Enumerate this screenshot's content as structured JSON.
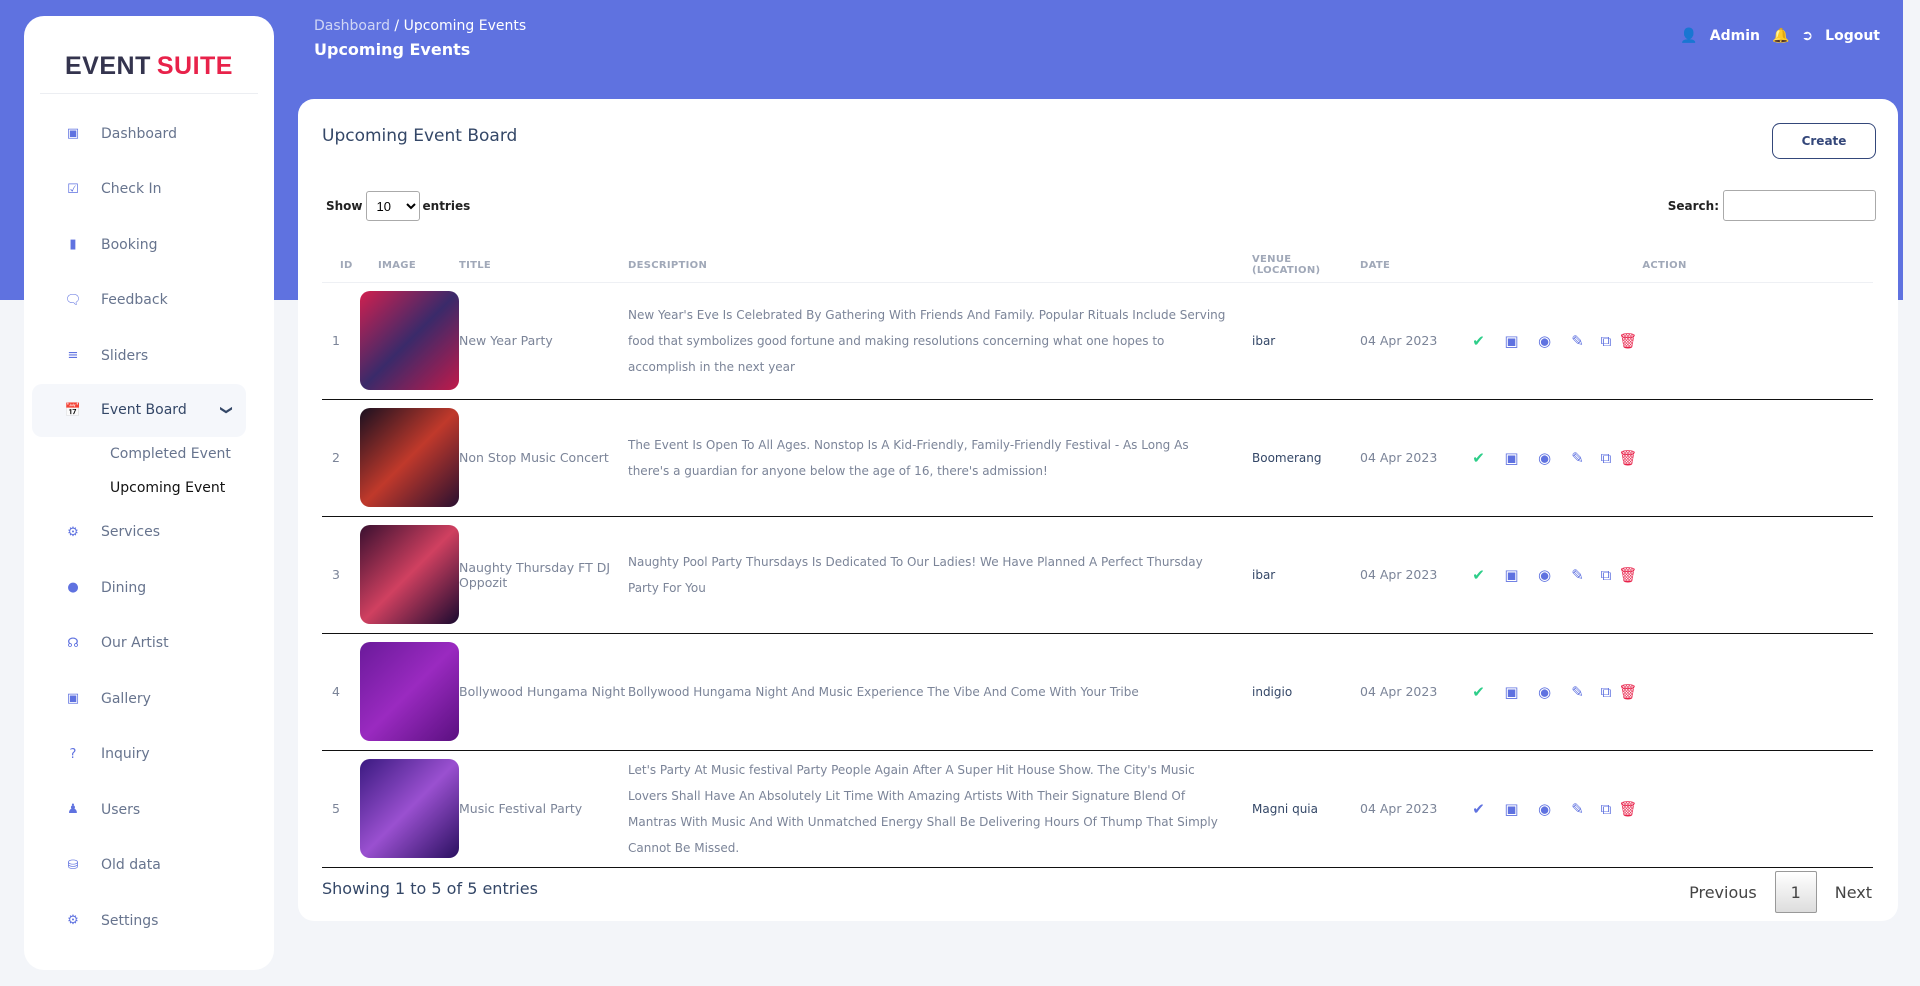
{
  "brand": {
    "part1": "EVENT",
    "part2": "SUITE"
  },
  "sidebar": {
    "items": [
      {
        "label": "Dashboard",
        "icon": "monitor-icon"
      },
      {
        "label": "Check In",
        "icon": "checkbox-icon"
      },
      {
        "label": "Booking",
        "icon": "book-icon"
      },
      {
        "label": "Feedback",
        "icon": "comments-icon"
      },
      {
        "label": "Sliders",
        "icon": "sliders-icon"
      },
      {
        "label": "Event Board",
        "icon": "calendar-icon"
      },
      {
        "label": "Services",
        "icon": "cogs-icon"
      },
      {
        "label": "Dining",
        "icon": "apple-icon"
      },
      {
        "label": "Our Artist",
        "icon": "headphones-icon"
      },
      {
        "label": "Gallery",
        "icon": "image-icon"
      },
      {
        "label": "Inquiry",
        "icon": "question-icon"
      },
      {
        "label": "Users",
        "icon": "users-icon"
      },
      {
        "label": "Old data",
        "icon": "database-icon"
      },
      {
        "label": "Settings",
        "icon": "gear-icon"
      }
    ],
    "sub": [
      "Completed Event",
      "Upcoming Event"
    ]
  },
  "header": {
    "crumb_root": "Dashboard",
    "crumb_sep": "/",
    "crumb_current": "Upcoming Events",
    "title": "Upcoming Events",
    "user": "Admin",
    "logout": "Logout"
  },
  "board": {
    "title": "Upcoming Event Board",
    "create": "Create",
    "show": "Show",
    "entries": "entries",
    "page_size": "10",
    "search_label": "Search:",
    "search_value": ""
  },
  "columns": [
    "ID",
    "IMAGE",
    "TITLE",
    "DESCRIPTION",
    "VENUE (LOCATION)",
    "DATE",
    "ACTION"
  ],
  "rows": [
    {
      "id": "1",
      "title": "New Year Party",
      "description": "New Year's Eve Is Celebrated By Gathering With Friends And Family. Popular Rituals Include Serving food that symbolizes good fortune and making resolutions concerning what one hopes to accomplish in the next year",
      "venue": "ibar",
      "date": "04 Apr 2023",
      "status": "check-green"
    },
    {
      "id": "2",
      "title": "Non Stop Music Concert",
      "description": "The Event Is Open To All Ages. Nonstop Is A Kid-Friendly, Family-Friendly Festival - As Long As there's a guardian for anyone below the age of 16, there's admission!",
      "venue": "Boomerang",
      "date": "04 Apr 2023",
      "status": "check-green"
    },
    {
      "id": "3",
      "title": "Naughty Thursday FT DJ Oppozit",
      "description": "Naughty Pool Party Thursdays Is Dedicated To Our Ladies! We Have Planned A Perfect Thursday Party For You",
      "venue": "ibar",
      "date": "04 Apr 2023",
      "status": "check-green"
    },
    {
      "id": "4",
      "title": "Bollywood Hungama Night",
      "description": "Bollywood Hungama Night And Music Experience The Vibe And Come With Your Tribe",
      "venue": "indigio",
      "date": "04 Apr 2023",
      "status": "check-green"
    },
    {
      "id": "5",
      "title": "Music Festival Party",
      "description": "Let's Party At Music festival Party People Again After A Super Hit House Show. The City's Music Lovers Shall Have An Absolutely Lit Time With Amazing Artists With Their Signature Blend Of Mantras With Music And With Unmatched Energy Shall Be Delivering Hours Of Thump That Simply Cannot Be Missed.",
      "venue": "Magni quia",
      "date": "04 Apr 2023",
      "status": "check-blue"
    }
  ],
  "footer": {
    "info": "Showing 1 to 5 of 5 entries",
    "prev": "Previous",
    "page": "1",
    "next": "Next"
  },
  "colors": {
    "primary": "#5f72e0",
    "brand_red": "#e8224a",
    "success": "#2dce89"
  }
}
